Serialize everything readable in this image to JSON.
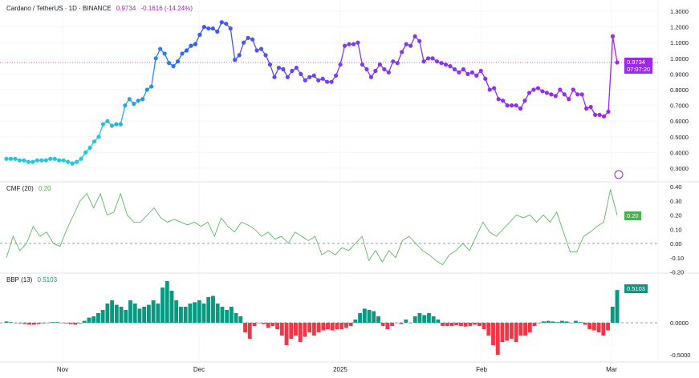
{
  "header": {
    "symbol": "Cardano / TetherUS · 1D · BINANCE",
    "last": "0.9734",
    "change": "-0.1616 (-14.24%)"
  },
  "price_badge": {
    "value": "0.9734",
    "countdown": "07:07:20"
  },
  "cmf_legend": {
    "name": "CMF (20)",
    "value": "0.20"
  },
  "bbp_legend": {
    "name": "BBP (13)",
    "value": "0.5103"
  },
  "colors": {
    "price_start": "#26c6da",
    "price_mid": "#2962ff",
    "price_end": "#9c27b0",
    "cmf": "#4caf50",
    "bbp_pos": "#089981",
    "bbp_neg": "#f23645"
  },
  "chart_data": [
    {
      "type": "line",
      "title": "Cardano / TetherUS · 1D · BINANCE",
      "ylim": [
        0.25,
        1.35
      ],
      "yticks": [
        "1.3000",
        "1.2000",
        "1.1000",
        "1.0000",
        "0.9000",
        "0.8000",
        "0.7000",
        "0.6000",
        "0.5000",
        "0.4000",
        "0.3000"
      ],
      "values": [
        0.36,
        0.36,
        0.36,
        0.35,
        0.35,
        0.34,
        0.34,
        0.35,
        0.35,
        0.35,
        0.36,
        0.36,
        0.35,
        0.35,
        0.34,
        0.33,
        0.34,
        0.36,
        0.4,
        0.43,
        0.47,
        0.5,
        0.58,
        0.6,
        0.57,
        0.58,
        0.58,
        0.7,
        0.74,
        0.71,
        0.73,
        0.74,
        0.8,
        0.82,
        1.0,
        1.06,
        1.03,
        0.97,
        0.95,
        0.98,
        1.03,
        1.05,
        1.08,
        1.09,
        1.15,
        1.2,
        1.19,
        1.19,
        1.17,
        1.23,
        1.22,
        1.19,
        0.99,
        1.02,
        1.1,
        1.13,
        1.12,
        1.05,
        1.06,
        1.02,
        0.96,
        0.88,
        0.94,
        0.93,
        0.88,
        0.92,
        0.94,
        0.9,
        0.86,
        0.88,
        0.89,
        0.86,
        0.87,
        0.85,
        0.85,
        0.89,
        0.96,
        1.08,
        1.09,
        1.09,
        1.1,
        0.96,
        0.93,
        0.88,
        0.92,
        0.96,
        0.93,
        0.91,
        0.98,
        0.97,
        1.04,
        1.09,
        1.08,
        1.14,
        1.11,
        0.98,
        1.0,
        1.0,
        0.98,
        0.97,
        0.96,
        0.95,
        0.93,
        0.91,
        0.93,
        0.9,
        0.91,
        0.89,
        0.92,
        0.87,
        0.8,
        0.81,
        0.74,
        0.73,
        0.7,
        0.7,
        0.7,
        0.68,
        0.73,
        0.78,
        0.8,
        0.81,
        0.79,
        0.78,
        0.77,
        0.76,
        0.8,
        0.77,
        0.74,
        0.8,
        0.77,
        0.77,
        0.68,
        0.69,
        0.64,
        0.64,
        0.63,
        0.66,
        1.14,
        0.9734
      ]
    },
    {
      "type": "line",
      "title": "CMF (20)",
      "ylim": [
        -0.2,
        0.45
      ],
      "yticks": [
        "0.40",
        "0.30",
        "0.20",
        "0.10",
        "0.00",
        "-0.10",
        "-0.20"
      ],
      "values": [
        -0.1,
        0.05,
        -0.05,
        0.0,
        0.12,
        0.05,
        0.08,
        0.0,
        -0.02,
        0.1,
        0.2,
        0.3,
        0.35,
        0.25,
        0.35,
        0.2,
        0.22,
        0.35,
        0.2,
        0.15,
        0.15,
        0.2,
        0.25,
        0.18,
        0.15,
        0.17,
        0.15,
        0.13,
        0.15,
        0.12,
        0.15,
        0.05,
        0.18,
        0.12,
        0.08,
        0.15,
        0.13,
        0.1,
        0.05,
        0.08,
        0.03,
        0.05,
        0.0,
        0.08,
        0.05,
        0.02,
        0.05,
        -0.08,
        -0.05,
        -0.08,
        -0.03,
        -0.05,
        0.0,
        0.05,
        -0.12,
        -0.05,
        -0.13,
        -0.05,
        -0.1,
        0.02,
        0.05,
        0.0,
        -0.05,
        -0.08,
        -0.12,
        -0.15,
        -0.08,
        -0.05,
        0.0,
        -0.05,
        0.05,
        0.15,
        0.08,
        0.05,
        0.1,
        0.15,
        0.2,
        0.18,
        0.2,
        0.15,
        0.2,
        0.15,
        0.22,
        0.08,
        -0.06,
        -0.06,
        0.05,
        0.08,
        0.12,
        0.15,
        0.38,
        0.2
      ]
    },
    {
      "type": "bar",
      "title": "BBP (13)",
      "ylim": [
        -0.55,
        0.6
      ],
      "yticks": [
        "0.0000",
        "-0.5000"
      ],
      "values": [
        0.02,
        0.01,
        0.0,
        -0.01,
        -0.02,
        -0.03,
        -0.03,
        -0.02,
        -0.01,
        0.0,
        0.01,
        0.01,
        0.0,
        -0.01,
        -0.02,
        -0.03,
        -0.01,
        0.03,
        0.08,
        0.1,
        0.15,
        0.2,
        0.3,
        0.35,
        0.28,
        0.25,
        0.2,
        0.35,
        0.3,
        0.22,
        0.25,
        0.28,
        0.35,
        0.3,
        0.55,
        0.65,
        0.5,
        0.35,
        0.25,
        0.25,
        0.3,
        0.32,
        0.35,
        0.3,
        0.4,
        0.42,
        0.3,
        0.25,
        0.2,
        0.25,
        0.15,
        0.1,
        -0.15,
        -0.25,
        -0.05,
        0.0,
        -0.02,
        -0.08,
        -0.05,
        -0.1,
        -0.2,
        -0.35,
        -0.25,
        -0.2,
        -0.3,
        -0.22,
        -0.15,
        -0.2,
        -0.15,
        -0.12,
        -0.1,
        -0.12,
        -0.1,
        -0.1,
        -0.08,
        -0.05,
        0.05,
        0.15,
        0.22,
        0.2,
        0.18,
        0.1,
        -0.05,
        -0.1,
        -0.05,
        0.0,
        -0.02,
        0.05,
        0.0,
        0.1,
        0.15,
        0.12,
        0.15,
        0.1,
        0.05,
        -0.05,
        -0.05,
        -0.05,
        -0.04,
        -0.05,
        -0.06,
        -0.05,
        -0.03,
        -0.05,
        -0.1,
        -0.2,
        -0.35,
        -0.5,
        -0.3,
        -0.28,
        -0.25,
        -0.3,
        -0.2,
        -0.2,
        -0.15,
        -0.05,
        0.0,
        0.02,
        0.03,
        0.02,
        0.01,
        0.03,
        0.02,
        0.0,
        0.03,
        0.01,
        -0.03,
        -0.1,
        -0.12,
        -0.15,
        -0.2,
        -0.12,
        0.25,
        0.5103
      ]
    }
  ],
  "time_axis": [
    "Nov",
    "Dec",
    "2025",
    "Feb",
    "Mar"
  ]
}
